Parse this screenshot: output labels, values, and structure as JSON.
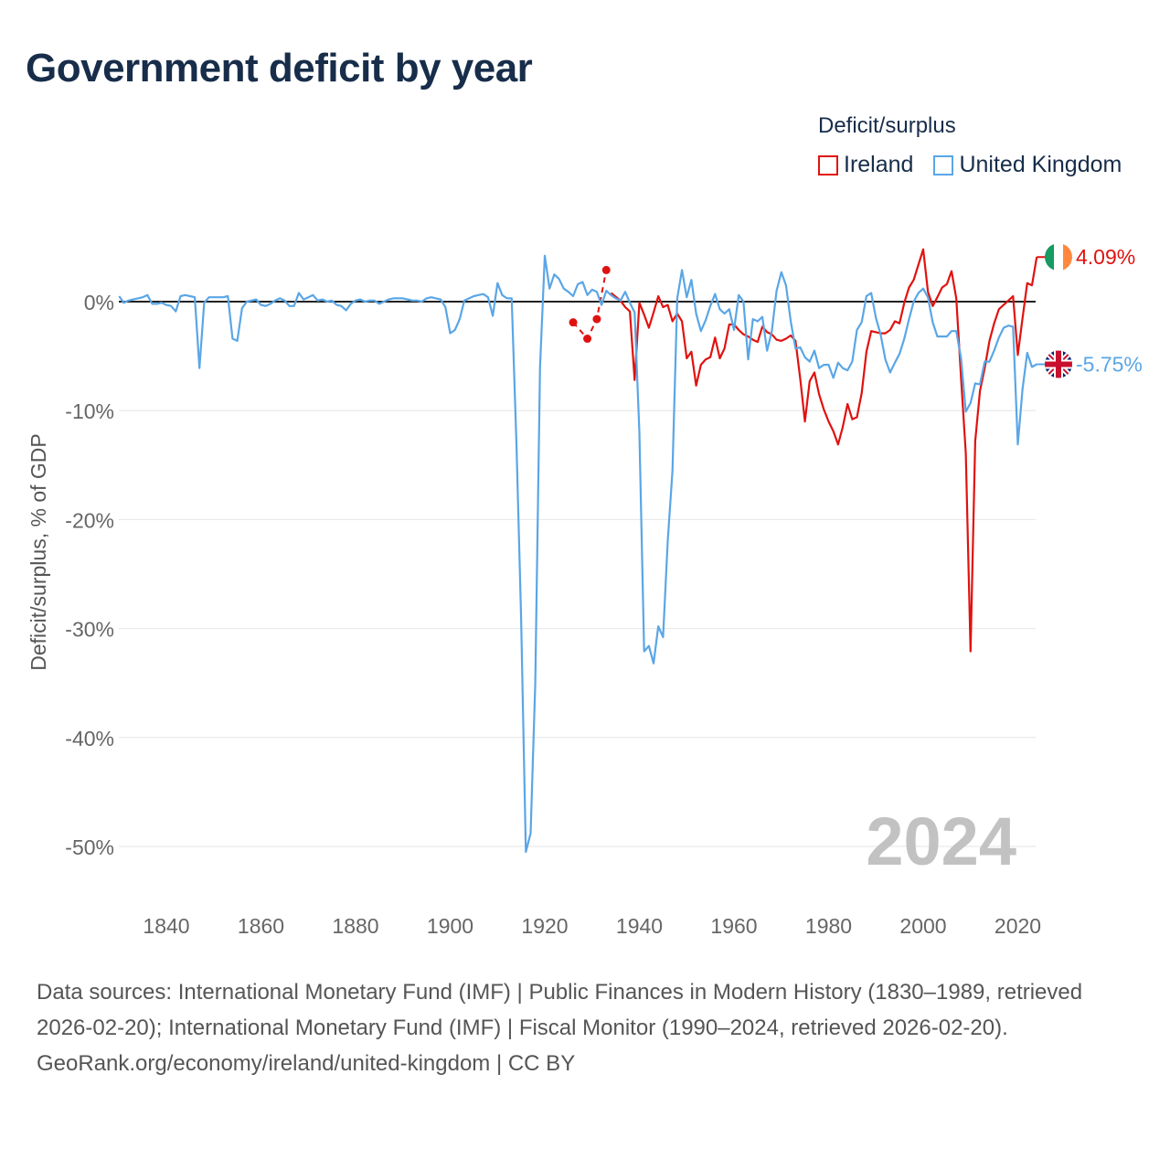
{
  "title": "Government deficit by year",
  "legend": {
    "title": "Deficit/surplus",
    "ireland": "Ireland",
    "uk": "United Kingdom"
  },
  "colors": {
    "ireland": "#e0120f",
    "uk": "#5aa6e6",
    "zero_line": "#222222",
    "grid": "#e6e6e6",
    "year": "#c2c2c2"
  },
  "footer": {
    "sources": "Data sources: International Monetary Fund (IMF) | Public Finances in Modern History (1830–1989, retrieved 2026-02-20); International Monetary Fund (IMF) | Fiscal Monitor (1990–2024, retrieved 2026-02-20).",
    "credit": "GeoRank.org/economy/ireland/united-kingdom | CC BY"
  },
  "chart_data": {
    "type": "line",
    "title": "Government deficit by year",
    "ylabel": "Deficit/surplus, % of GDP",
    "xlabel": "",
    "xlim": [
      1830,
      2024
    ],
    "ylim": [
      -52,
      5
    ],
    "x_ticks": [
      "1840",
      "1860",
      "1880",
      "1900",
      "1920",
      "1940",
      "1960",
      "1980",
      "2000",
      "2020"
    ],
    "y_ticks": [
      "0%",
      "-10%",
      "-20%",
      "-30%",
      "-40%",
      "-50%"
    ],
    "current_year": "2024",
    "end_labels": {
      "ireland": "4.09%",
      "uk": "-5.75%"
    },
    "series": [
      {
        "name": "Ireland",
        "color": "#e0120f",
        "dashed_points": [
          [
            1926,
            -1.9
          ],
          [
            1929,
            -3.4
          ],
          [
            1931,
            -1.6
          ],
          [
            1933,
            2.9
          ]
        ],
        "points": [
          [
            1934,
            0.8
          ],
          [
            1936,
            0.1
          ],
          [
            1937,
            -0.5
          ],
          [
            1938,
            -0.9
          ],
          [
            1939,
            -7.2
          ],
          [
            1940,
            -0.1
          ],
          [
            1941,
            -1.2
          ],
          [
            1942,
            -2.4
          ],
          [
            1943,
            -1.0
          ],
          [
            1944,
            0.5
          ],
          [
            1945,
            -0.5
          ],
          [
            1946,
            -0.3
          ],
          [
            1947,
            -1.8
          ],
          [
            1948,
            -1.1
          ],
          [
            1949,
            -1.8
          ],
          [
            1950,
            -5.2
          ],
          [
            1951,
            -4.6
          ],
          [
            1952,
            -7.7
          ],
          [
            1953,
            -5.8
          ],
          [
            1954,
            -5.3
          ],
          [
            1955,
            -5.1
          ],
          [
            1956,
            -3.3
          ],
          [
            1957,
            -5.2
          ],
          [
            1958,
            -4.3
          ],
          [
            1959,
            -2.1
          ],
          [
            1960,
            -2.1
          ],
          [
            1961,
            -2.6
          ],
          [
            1962,
            -3.0
          ],
          [
            1963,
            -3.2
          ],
          [
            1964,
            -3.5
          ],
          [
            1965,
            -3.7
          ],
          [
            1966,
            -2.3
          ],
          [
            1967,
            -2.8
          ],
          [
            1968,
            -3.0
          ],
          [
            1969,
            -3.5
          ],
          [
            1970,
            -3.6
          ],
          [
            1971,
            -3.4
          ],
          [
            1972,
            -3.1
          ],
          [
            1973,
            -3.6
          ],
          [
            1974,
            -7.1
          ],
          [
            1975,
            -11.0
          ],
          [
            1976,
            -7.3
          ],
          [
            1977,
            -6.5
          ],
          [
            1978,
            -8.5
          ],
          [
            1979,
            -9.9
          ],
          [
            1980,
            -11.0
          ],
          [
            1981,
            -11.9
          ],
          [
            1982,
            -13.1
          ],
          [
            1983,
            -11.5
          ],
          [
            1984,
            -9.4
          ],
          [
            1985,
            -10.8
          ],
          [
            1986,
            -10.6
          ],
          [
            1987,
            -8.4
          ],
          [
            1988,
            -4.6
          ],
          [
            1989,
            -2.7
          ],
          [
            1990,
            -2.8
          ],
          [
            1991,
            -2.9
          ],
          [
            1992,
            -2.9
          ],
          [
            1993,
            -2.6
          ],
          [
            1994,
            -1.8
          ],
          [
            1995,
            -2.0
          ],
          [
            1996,
            -0.1
          ],
          [
            1997,
            1.3
          ],
          [
            1998,
            2.0
          ],
          [
            1999,
            3.4
          ],
          [
            2000,
            4.8
          ],
          [
            2001,
            0.9
          ],
          [
            2002,
            -0.4
          ],
          [
            2003,
            0.4
          ],
          [
            2004,
            1.3
          ],
          [
            2005,
            1.6
          ],
          [
            2006,
            2.8
          ],
          [
            2007,
            0.3
          ],
          [
            2008,
            -7.0
          ],
          [
            2009,
            -13.9
          ],
          [
            2010,
            -32.1
          ],
          [
            2011,
            -12.8
          ],
          [
            2012,
            -8.2
          ],
          [
            2013,
            -6.1
          ],
          [
            2014,
            -3.6
          ],
          [
            2015,
            -2.0
          ],
          [
            2016,
            -0.7
          ],
          [
            2017,
            -0.3
          ],
          [
            2018,
            0.1
          ],
          [
            2019,
            0.5
          ],
          [
            2020,
            -4.9
          ],
          [
            2021,
            -1.5
          ],
          [
            2022,
            1.7
          ],
          [
            2023,
            1.5
          ],
          [
            2024,
            4.09
          ]
        ]
      },
      {
        "name": "United Kingdom",
        "color": "#5aa6e6",
        "points": [
          [
            1830,
            0.5
          ],
          [
            1831,
            -0.1
          ],
          [
            1832,
            0.1
          ],
          [
            1833,
            0.2
          ],
          [
            1834,
            0.3
          ],
          [
            1835,
            0.4
          ],
          [
            1836,
            0.6
          ],
          [
            1837,
            -0.2
          ],
          [
            1838,
            -0.2
          ],
          [
            1839,
            -0.1
          ],
          [
            1840,
            -0.3
          ],
          [
            1841,
            -0.4
          ],
          [
            1842,
            -0.9
          ],
          [
            1843,
            0.5
          ],
          [
            1844,
            0.6
          ],
          [
            1845,
            0.5
          ],
          [
            1846,
            0.4
          ],
          [
            1847,
            -6.1
          ],
          [
            1848,
            -0.1
          ],
          [
            1849,
            0.4
          ],
          [
            1850,
            0.4
          ],
          [
            1851,
            0.4
          ],
          [
            1852,
            0.4
          ],
          [
            1853,
            0.5
          ],
          [
            1854,
            -3.4
          ],
          [
            1855,
            -3.6
          ],
          [
            1856,
            -0.6
          ],
          [
            1857,
            0.0
          ],
          [
            1858,
            0.1
          ],
          [
            1859,
            0.2
          ],
          [
            1860,
            -0.3
          ],
          [
            1861,
            -0.4
          ],
          [
            1862,
            -0.2
          ],
          [
            1863,
            0.1
          ],
          [
            1864,
            0.3
          ],
          [
            1865,
            0.1
          ],
          [
            1866,
            -0.4
          ],
          [
            1867,
            -0.4
          ],
          [
            1868,
            0.8
          ],
          [
            1869,
            0.2
          ],
          [
            1870,
            0.4
          ],
          [
            1871,
            0.6
          ],
          [
            1872,
            0.1
          ],
          [
            1873,
            0.2
          ],
          [
            1874,
            0.0
          ],
          [
            1875,
            0.1
          ],
          [
            1876,
            -0.3
          ],
          [
            1877,
            -0.4
          ],
          [
            1878,
            -0.8
          ],
          [
            1879,
            -0.2
          ],
          [
            1880,
            0.1
          ],
          [
            1881,
            0.2
          ],
          [
            1882,
            0.0
          ],
          [
            1883,
            0.1
          ],
          [
            1884,
            0.1
          ],
          [
            1885,
            -0.2
          ],
          [
            1886,
            0.0
          ],
          [
            1887,
            0.2
          ],
          [
            1888,
            0.3
          ],
          [
            1889,
            0.3
          ],
          [
            1890,
            0.3
          ],
          [
            1891,
            0.2
          ],
          [
            1892,
            0.1
          ],
          [
            1893,
            0.1
          ],
          [
            1894,
            0.0
          ],
          [
            1895,
            0.3
          ],
          [
            1896,
            0.4
          ],
          [
            1897,
            0.3
          ],
          [
            1898,
            0.2
          ],
          [
            1899,
            -0.5
          ],
          [
            1900,
            -2.9
          ],
          [
            1901,
            -2.6
          ],
          [
            1902,
            -1.6
          ],
          [
            1903,
            0.1
          ],
          [
            1904,
            0.3
          ],
          [
            1905,
            0.5
          ],
          [
            1906,
            0.6
          ],
          [
            1907,
            0.7
          ],
          [
            1908,
            0.4
          ],
          [
            1909,
            -1.3
          ],
          [
            1910,
            1.7
          ],
          [
            1911,
            0.6
          ],
          [
            1912,
            0.3
          ],
          [
            1913,
            0.3
          ],
          [
            1914,
            -13.0
          ],
          [
            1915,
            -29.0
          ],
          [
            1916,
            -50.5
          ],
          [
            1917,
            -48.8
          ],
          [
            1918,
            -35.0
          ],
          [
            1919,
            -6.0
          ],
          [
            1920,
            4.2
          ],
          [
            1921,
            1.2
          ],
          [
            1922,
            2.5
          ],
          [
            1923,
            2.1
          ],
          [
            1924,
            1.2
          ],
          [
            1925,
            0.9
          ],
          [
            1926,
            0.5
          ],
          [
            1927,
            1.6
          ],
          [
            1928,
            1.8
          ],
          [
            1929,
            0.6
          ],
          [
            1930,
            1.1
          ],
          [
            1931,
            0.9
          ],
          [
            1932,
            -0.3
          ],
          [
            1933,
            1.0
          ],
          [
            1934,
            0.6
          ],
          [
            1935,
            0.3
          ],
          [
            1936,
            0.1
          ],
          [
            1937,
            0.9
          ],
          [
            1938,
            -0.1
          ],
          [
            1939,
            -1.0
          ],
          [
            1940,
            -12.0
          ],
          [
            1941,
            -32.1
          ],
          [
            1942,
            -31.6
          ],
          [
            1943,
            -33.2
          ],
          [
            1944,
            -29.8
          ],
          [
            1945,
            -30.8
          ],
          [
            1946,
            -22.0
          ],
          [
            1947,
            -15.5
          ],
          [
            1948,
            0.3
          ],
          [
            1949,
            2.9
          ],
          [
            1950,
            0.4
          ],
          [
            1951,
            2.0
          ],
          [
            1952,
            -1.1
          ],
          [
            1953,
            -2.7
          ],
          [
            1954,
            -1.7
          ],
          [
            1955,
            -0.4
          ],
          [
            1956,
            0.7
          ],
          [
            1957,
            -0.7
          ],
          [
            1958,
            -1.1
          ],
          [
            1959,
            -0.7
          ],
          [
            1960,
            -2.6
          ],
          [
            1961,
            0.6
          ],
          [
            1962,
            0.0
          ],
          [
            1963,
            -5.3
          ],
          [
            1964,
            -1.6
          ],
          [
            1965,
            -1.8
          ],
          [
            1966,
            -1.4
          ],
          [
            1967,
            -4.5
          ],
          [
            1968,
            -2.7
          ],
          [
            1969,
            1.0
          ],
          [
            1970,
            2.7
          ],
          [
            1971,
            1.5
          ],
          [
            1972,
            -1.8
          ],
          [
            1973,
            -4.3
          ],
          [
            1974,
            -4.2
          ],
          [
            1975,
            -5.1
          ],
          [
            1976,
            -5.5
          ],
          [
            1977,
            -4.5
          ],
          [
            1978,
            -6.1
          ],
          [
            1979,
            -5.8
          ],
          [
            1980,
            -5.8
          ],
          [
            1981,
            -7.0
          ],
          [
            1982,
            -5.6
          ],
          [
            1983,
            -6.1
          ],
          [
            1984,
            -6.3
          ],
          [
            1985,
            -5.5
          ],
          [
            1986,
            -2.6
          ],
          [
            1987,
            -1.9
          ],
          [
            1988,
            0.5
          ],
          [
            1989,
            0.8
          ],
          [
            1990,
            -1.5
          ],
          [
            1991,
            -3.0
          ],
          [
            1992,
            -5.3
          ],
          [
            1993,
            -6.5
          ],
          [
            1994,
            -5.6
          ],
          [
            1995,
            -4.8
          ],
          [
            1996,
            -3.4
          ],
          [
            1997,
            -1.6
          ],
          [
            1998,
            0.0
          ],
          [
            1999,
            0.8
          ],
          [
            2000,
            1.2
          ],
          [
            2001,
            0.4
          ],
          [
            2002,
            -1.9
          ],
          [
            2003,
            -3.2
          ],
          [
            2004,
            -3.2
          ],
          [
            2005,
            -3.2
          ],
          [
            2006,
            -2.7
          ],
          [
            2007,
            -2.7
          ],
          [
            2008,
            -5.2
          ],
          [
            2009,
            -10.1
          ],
          [
            2010,
            -9.3
          ],
          [
            2011,
            -7.5
          ],
          [
            2012,
            -7.6
          ],
          [
            2013,
            -5.5
          ],
          [
            2014,
            -5.5
          ],
          [
            2015,
            -4.5
          ],
          [
            2016,
            -3.3
          ],
          [
            2017,
            -2.4
          ],
          [
            2018,
            -2.2
          ],
          [
            2019,
            -2.3
          ],
          [
            2020,
            -13.1
          ],
          [
            2021,
            -8.0
          ],
          [
            2022,
            -4.7
          ],
          [
            2023,
            -6.0
          ],
          [
            2024,
            -5.75
          ]
        ]
      }
    ]
  }
}
